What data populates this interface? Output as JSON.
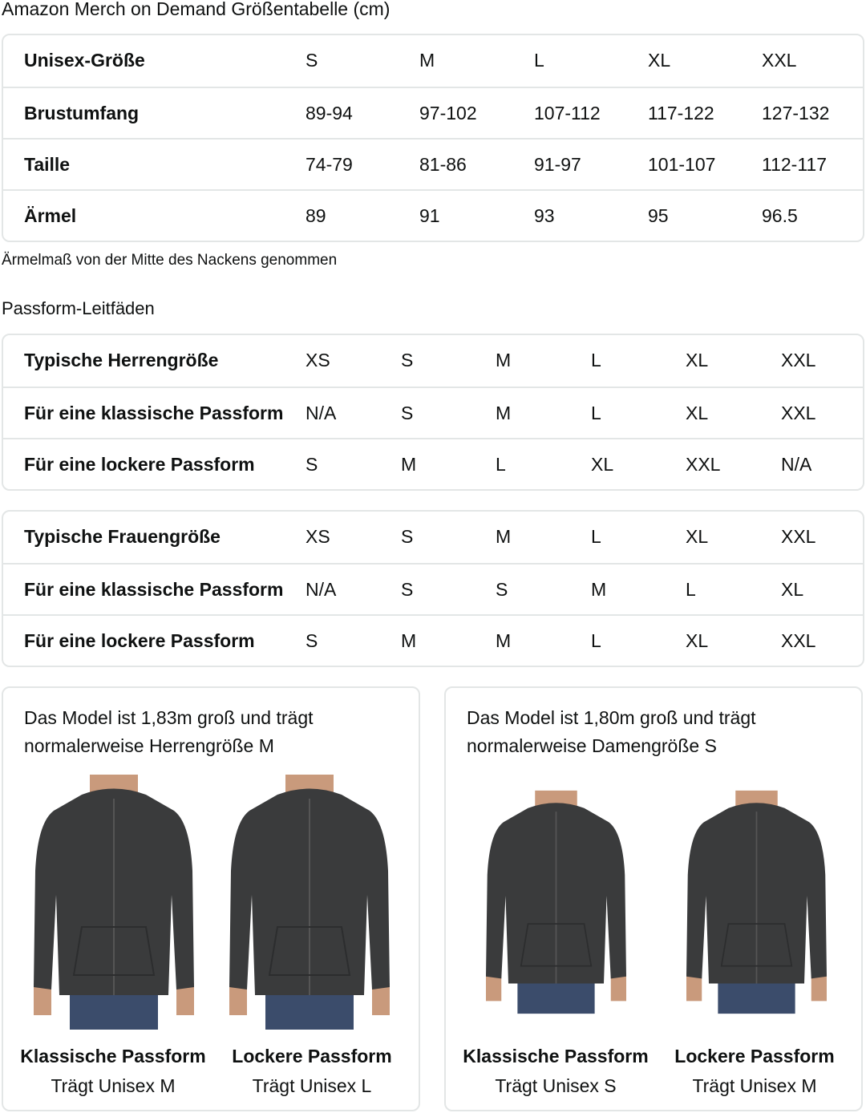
{
  "title": "Amazon Merch on Demand Größentabelle (cm)",
  "unisex_table": {
    "rows": [
      {
        "label": "Unisex-Größe",
        "values": [
          "S",
          "M",
          "L",
          "XL",
          "XXL"
        ]
      },
      {
        "label": "Brustumfang",
        "values": [
          "89-94",
          "97-102",
          "107-112",
          "117-122",
          "127-132"
        ]
      },
      {
        "label": "Taille",
        "values": [
          "74-79",
          "81-86",
          "91-97",
          "101-107",
          "112-117"
        ]
      },
      {
        "label": "Ärmel",
        "values": [
          "89",
          "91",
          "93",
          "95",
          "96.5"
        ]
      }
    ]
  },
  "sleeve_note": "Ärmelmaß von der Mitte des Nackens genommen",
  "fit_guide_title": "Passform-Leitfäden",
  "men_table": {
    "rows": [
      {
        "label": "Typische Herrengröße",
        "values": [
          "XS",
          "S",
          "M",
          "L",
          "XL",
          "XXL"
        ]
      },
      {
        "label": "Für eine klassische Passform",
        "values": [
          "N/A",
          "S",
          "M",
          "L",
          "XL",
          "XXL"
        ]
      },
      {
        "label": "Für eine lockere Passform",
        "values": [
          "S",
          "M",
          "L",
          "XL",
          "XXL",
          "N/A"
        ]
      }
    ]
  },
  "women_table": {
    "rows": [
      {
        "label": "Typische Frauengröße",
        "values": [
          "XS",
          "S",
          "M",
          "L",
          "XL",
          "XXL"
        ]
      },
      {
        "label": "Für eine klassische Passform",
        "values": [
          "N/A",
          "S",
          "S",
          "M",
          "L",
          "XL"
        ]
      },
      {
        "label": "Für eine lockere Passform",
        "values": [
          "S",
          "M",
          "M",
          "L",
          "XL",
          "XXL"
        ]
      }
    ]
  },
  "cards": [
    {
      "caption": "Das Model ist 1,83m groß und trägt normalerweise Herrengröße M",
      "figures": [
        {
          "fit": "Klassische Passform",
          "wears": "Trägt Unisex M"
        },
        {
          "fit": "Lockere Passform",
          "wears": "Trägt Unisex L"
        }
      ]
    },
    {
      "caption": "Das Model ist 1,80m groß und trägt normalerweise Damengröße S",
      "figures": [
        {
          "fit": "Klassische Passform",
          "wears": "Trägt Unisex S"
        },
        {
          "fit": "Lockere Passform",
          "wears": "Trägt Unisex M"
        }
      ]
    }
  ],
  "colors": {
    "hoodie": "#3a3b3c",
    "border": "#e3e6e6",
    "jeans": "#3b4c6b",
    "skin": "#c99a7c"
  }
}
